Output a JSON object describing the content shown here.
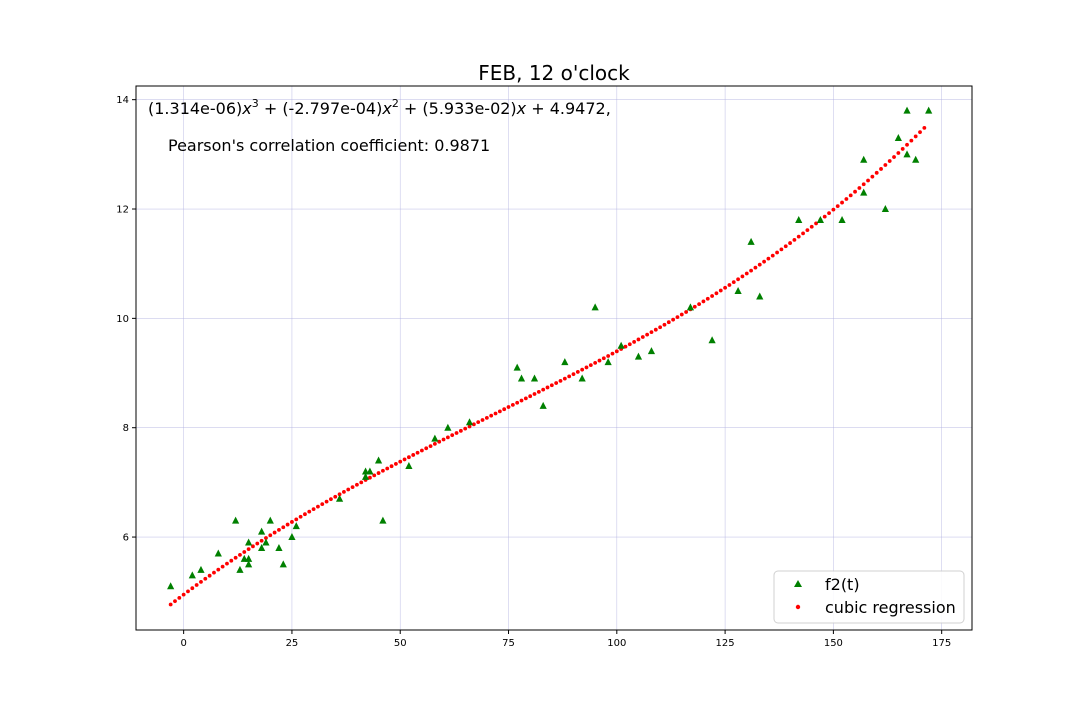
{
  "chart_data": {
    "type": "scatter",
    "title": "FEB, 12 o'clock",
    "xlabel": "",
    "ylabel": "",
    "xlim": [
      -11,
      182
    ],
    "ylim": [
      4.3,
      14.25
    ],
    "xticks": [
      0,
      25,
      50,
      75,
      100,
      125,
      150,
      175
    ],
    "yticks": [
      6,
      8,
      10,
      12,
      14
    ],
    "grid": true,
    "legend_position": "lower-right",
    "annotations": {
      "equation": {
        "c3": "(1.314e-06)",
        "c2": " + (-2.797e-04)",
        "c1": " + (5.933e-02)",
        "c0": " + 4.9472,",
        "var": "x",
        "exp3": "3",
        "exp2": "2"
      },
      "pearson": "Pearson's correlation coefficient: 0.9871"
    },
    "series": [
      {
        "name": "f2(t)",
        "marker": "triangle",
        "color": "#008000",
        "points": [
          [
            -3,
            5.1
          ],
          [
            2,
            5.3
          ],
          [
            4,
            5.4
          ],
          [
            8,
            5.7
          ],
          [
            12,
            6.3
          ],
          [
            13,
            5.4
          ],
          [
            14,
            5.6
          ],
          [
            15,
            5.5
          ],
          [
            15,
            5.6
          ],
          [
            15,
            5.9
          ],
          [
            18,
            5.8
          ],
          [
            18,
            6.1
          ],
          [
            19,
            5.9
          ],
          [
            20,
            6.3
          ],
          [
            22,
            5.8
          ],
          [
            23,
            5.5
          ],
          [
            25,
            6.0
          ],
          [
            26,
            6.2
          ],
          [
            36,
            6.7
          ],
          [
            42,
            7.1
          ],
          [
            42,
            7.2
          ],
          [
            43,
            7.2
          ],
          [
            45,
            7.4
          ],
          [
            46,
            6.3
          ],
          [
            52,
            7.3
          ],
          [
            58,
            7.8
          ],
          [
            61,
            8.0
          ],
          [
            66,
            8.1
          ],
          [
            77,
            9.1
          ],
          [
            78,
            8.9
          ],
          [
            81,
            8.9
          ],
          [
            83,
            8.4
          ],
          [
            88,
            9.2
          ],
          [
            92,
            8.9
          ],
          [
            95,
            10.2
          ],
          [
            98,
            9.2
          ],
          [
            101,
            9.5
          ],
          [
            105,
            9.3
          ],
          [
            108,
            9.4
          ],
          [
            117,
            10.2
          ],
          [
            122,
            9.6
          ],
          [
            128,
            10.5
          ],
          [
            131,
            11.4
          ],
          [
            133,
            10.4
          ],
          [
            142,
            11.8
          ],
          [
            147,
            11.8
          ],
          [
            152,
            11.8
          ],
          [
            157,
            12.9
          ],
          [
            157,
            12.3
          ],
          [
            162,
            12.0
          ],
          [
            165,
            13.3
          ],
          [
            167,
            13.0
          ],
          [
            167,
            13.8
          ],
          [
            169,
            12.9
          ],
          [
            172,
            13.8
          ]
        ]
      },
      {
        "name": "cubic regression",
        "marker": "dot",
        "color": "#ff0000",
        "coefficients": [
          1.314e-06,
          -0.0002797,
          0.05933,
          4.9472
        ],
        "x_range": [
          -3,
          171
        ],
        "x_step": 1
      }
    ]
  }
}
